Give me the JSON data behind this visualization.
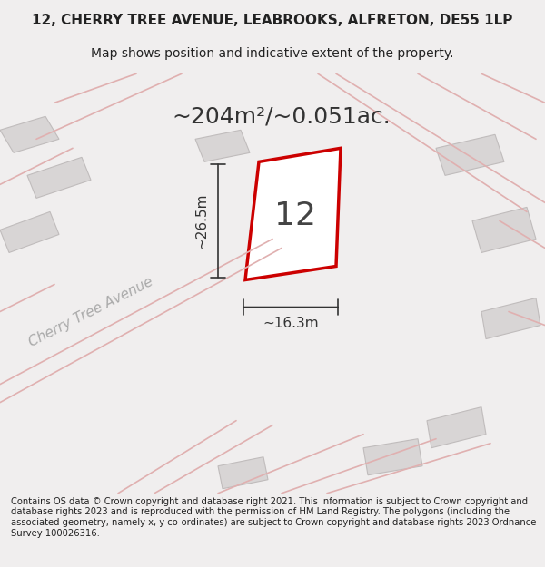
{
  "title_line1": "12, CHERRY TREE AVENUE, LEABROOKS, ALFRETON, DE55 1LP",
  "title_line2": "Map shows position and indicative extent of the property.",
  "area_text": "~204m²/~0.051ac.",
  "number_label": "12",
  "dim_vertical": "~26.5m",
  "dim_horizontal": "~16.3m",
  "street_label": "Cherry Tree Avenue",
  "footer_text": "Contains OS data © Crown copyright and database right 2021. This information is subject to Crown copyright and database rights 2023 and is reproduced with the permission of HM Land Registry. The polygons (including the associated geometry, namely x, y co-ordinates) are subject to Crown copyright and database rights 2023 Ordnance Survey 100026316.",
  "bg_color": "#f0eeee",
  "map_bg_color": "#f5f3f3",
  "building_color": "#d8d5d5",
  "building_edge_color": "#c0bcbc",
  "road_color": "#e8e4e4",
  "plot_outline_color": "#cc0000",
  "plot_fill_color": "#ffffff",
  "dim_line_color": "#333333",
  "title_color": "#222222",
  "footer_color": "#222222",
  "street_label_color": "#aaaaaa",
  "road_line_color": "#e0b0b0",
  "figsize": [
    6.0,
    6.25
  ],
  "dpi": 100
}
